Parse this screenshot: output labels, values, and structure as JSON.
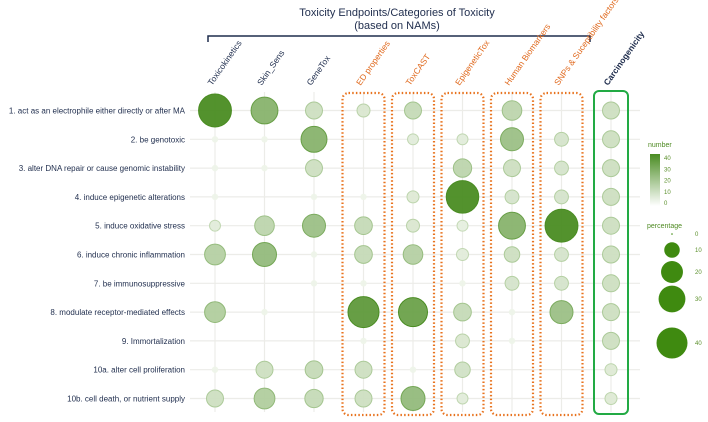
{
  "chart_data": {
    "type": "scatter",
    "title": "Toxicity Endpoints/Categories of Toxicity",
    "subtitle": "(based on NAMs)",
    "columns": [
      {
        "label": "Toxicokinetics",
        "color": "#1f2d4d",
        "box": "none"
      },
      {
        "label": "Skin_Sens",
        "color": "#1f2d4d",
        "box": "none"
      },
      {
        "label": "GeneTox",
        "color": "#1f2d4d",
        "box": "none"
      },
      {
        "label": "ED properties",
        "color": "#e06a1f",
        "box": "orange-dotted"
      },
      {
        "label": "ToxCAST",
        "color": "#e06a1f",
        "box": "orange-dotted"
      },
      {
        "label": "EpigeneticTox",
        "color": "#e06a1f",
        "box": "orange-dotted"
      },
      {
        "label": "Human Biomarkers",
        "color": "#e06a1f",
        "box": "orange-dotted"
      },
      {
        "label": "SNPs & Suceptibility factors",
        "color": "#e06a1f",
        "box": "orange-dotted"
      },
      {
        "label": "Carcinogenicity",
        "color": "#1f2d4d",
        "box": "green-solid",
        "bold": true
      }
    ],
    "rows": [
      "1. act as an electrophile either directly or after MA",
      "2. be genotoxic",
      "3. alter DNA repair or cause genomic instability",
      "4. induce epigenetic alterations",
      "5. induce oxidative stress",
      "6. induce chronic inflammation",
      "7. be immunosuppressive",
      "8. modulate receptor-mediated effects",
      "9. Immortalization",
      "10a. alter cell proliferation",
      "10b. cell death, or nutrient supply"
    ],
    "percentage": [
      [
        45,
        30,
        12,
        7,
        12,
        null,
        16,
        null,
        12
      ],
      [
        0,
        0,
        28,
        null,
        5,
        5,
        22,
        8,
        12
      ],
      [
        0,
        0,
        12,
        null,
        null,
        14,
        12,
        8,
        12
      ],
      [
        0,
        null,
        0,
        0,
        6,
        44,
        8,
        8,
        12
      ],
      [
        5,
        16,
        22,
        13,
        7,
        5,
        30,
        45,
        12
      ],
      [
        18,
        24,
        0,
        13,
        16,
        6,
        10,
        8,
        12
      ],
      [
        null,
        null,
        0,
        0,
        null,
        0,
        8,
        8,
        12
      ],
      [
        18,
        0,
        null,
        40,
        35,
        13,
        0,
        22,
        12
      ],
      [
        null,
        null,
        null,
        0,
        null,
        8,
        0,
        null,
        12
      ],
      [
        0,
        12,
        13,
        12,
        0,
        10,
        null,
        null,
        6
      ],
      [
        12,
        18,
        14,
        12,
        24,
        5,
        null,
        null,
        6
      ]
    ],
    "number": [
      [
        40,
        25,
        8,
        5,
        10,
        null,
        12,
        null,
        8
      ],
      [
        0,
        0,
        25,
        null,
        3,
        3,
        20,
        6,
        8
      ],
      [
        0,
        0,
        8,
        null,
        null,
        12,
        8,
        6,
        8
      ],
      [
        0,
        null,
        0,
        0,
        4,
        40,
        6,
        6,
        8
      ],
      [
        3,
        12,
        20,
        10,
        5,
        2,
        25,
        40,
        8
      ],
      [
        14,
        22,
        0,
        10,
        14,
        3,
        8,
        6,
        8
      ],
      [
        null,
        null,
        0,
        0,
        null,
        0,
        6,
        6,
        8
      ],
      [
        15,
        0,
        null,
        35,
        32,
        10,
        0,
        20,
        8
      ],
      [
        null,
        null,
        null,
        0,
        null,
        5,
        0,
        null,
        8
      ],
      [
        0,
        8,
        10,
        8,
        0,
        7,
        null,
        null,
        4
      ],
      [
        8,
        15,
        10,
        8,
        22,
        3,
        null,
        null,
        4
      ]
    ],
    "legend": {
      "number_title": "number",
      "number_ticks": [
        "40",
        "30",
        "20",
        "10",
        "0"
      ],
      "number_range": [
        0,
        40
      ],
      "percentage_title": "percentage",
      "percentage_ticks": [
        "0",
        "10",
        "20",
        "30",
        "40"
      ],
      "percentage_values": [
        0,
        10,
        20,
        30,
        40
      ],
      "placement": "right"
    },
    "colors": {
      "low": "#eef4e9",
      "high": "#4a8c22",
      "orange_box": "#e8731f",
      "green_box": "#22aa44",
      "grid": "#ecece8"
    }
  }
}
